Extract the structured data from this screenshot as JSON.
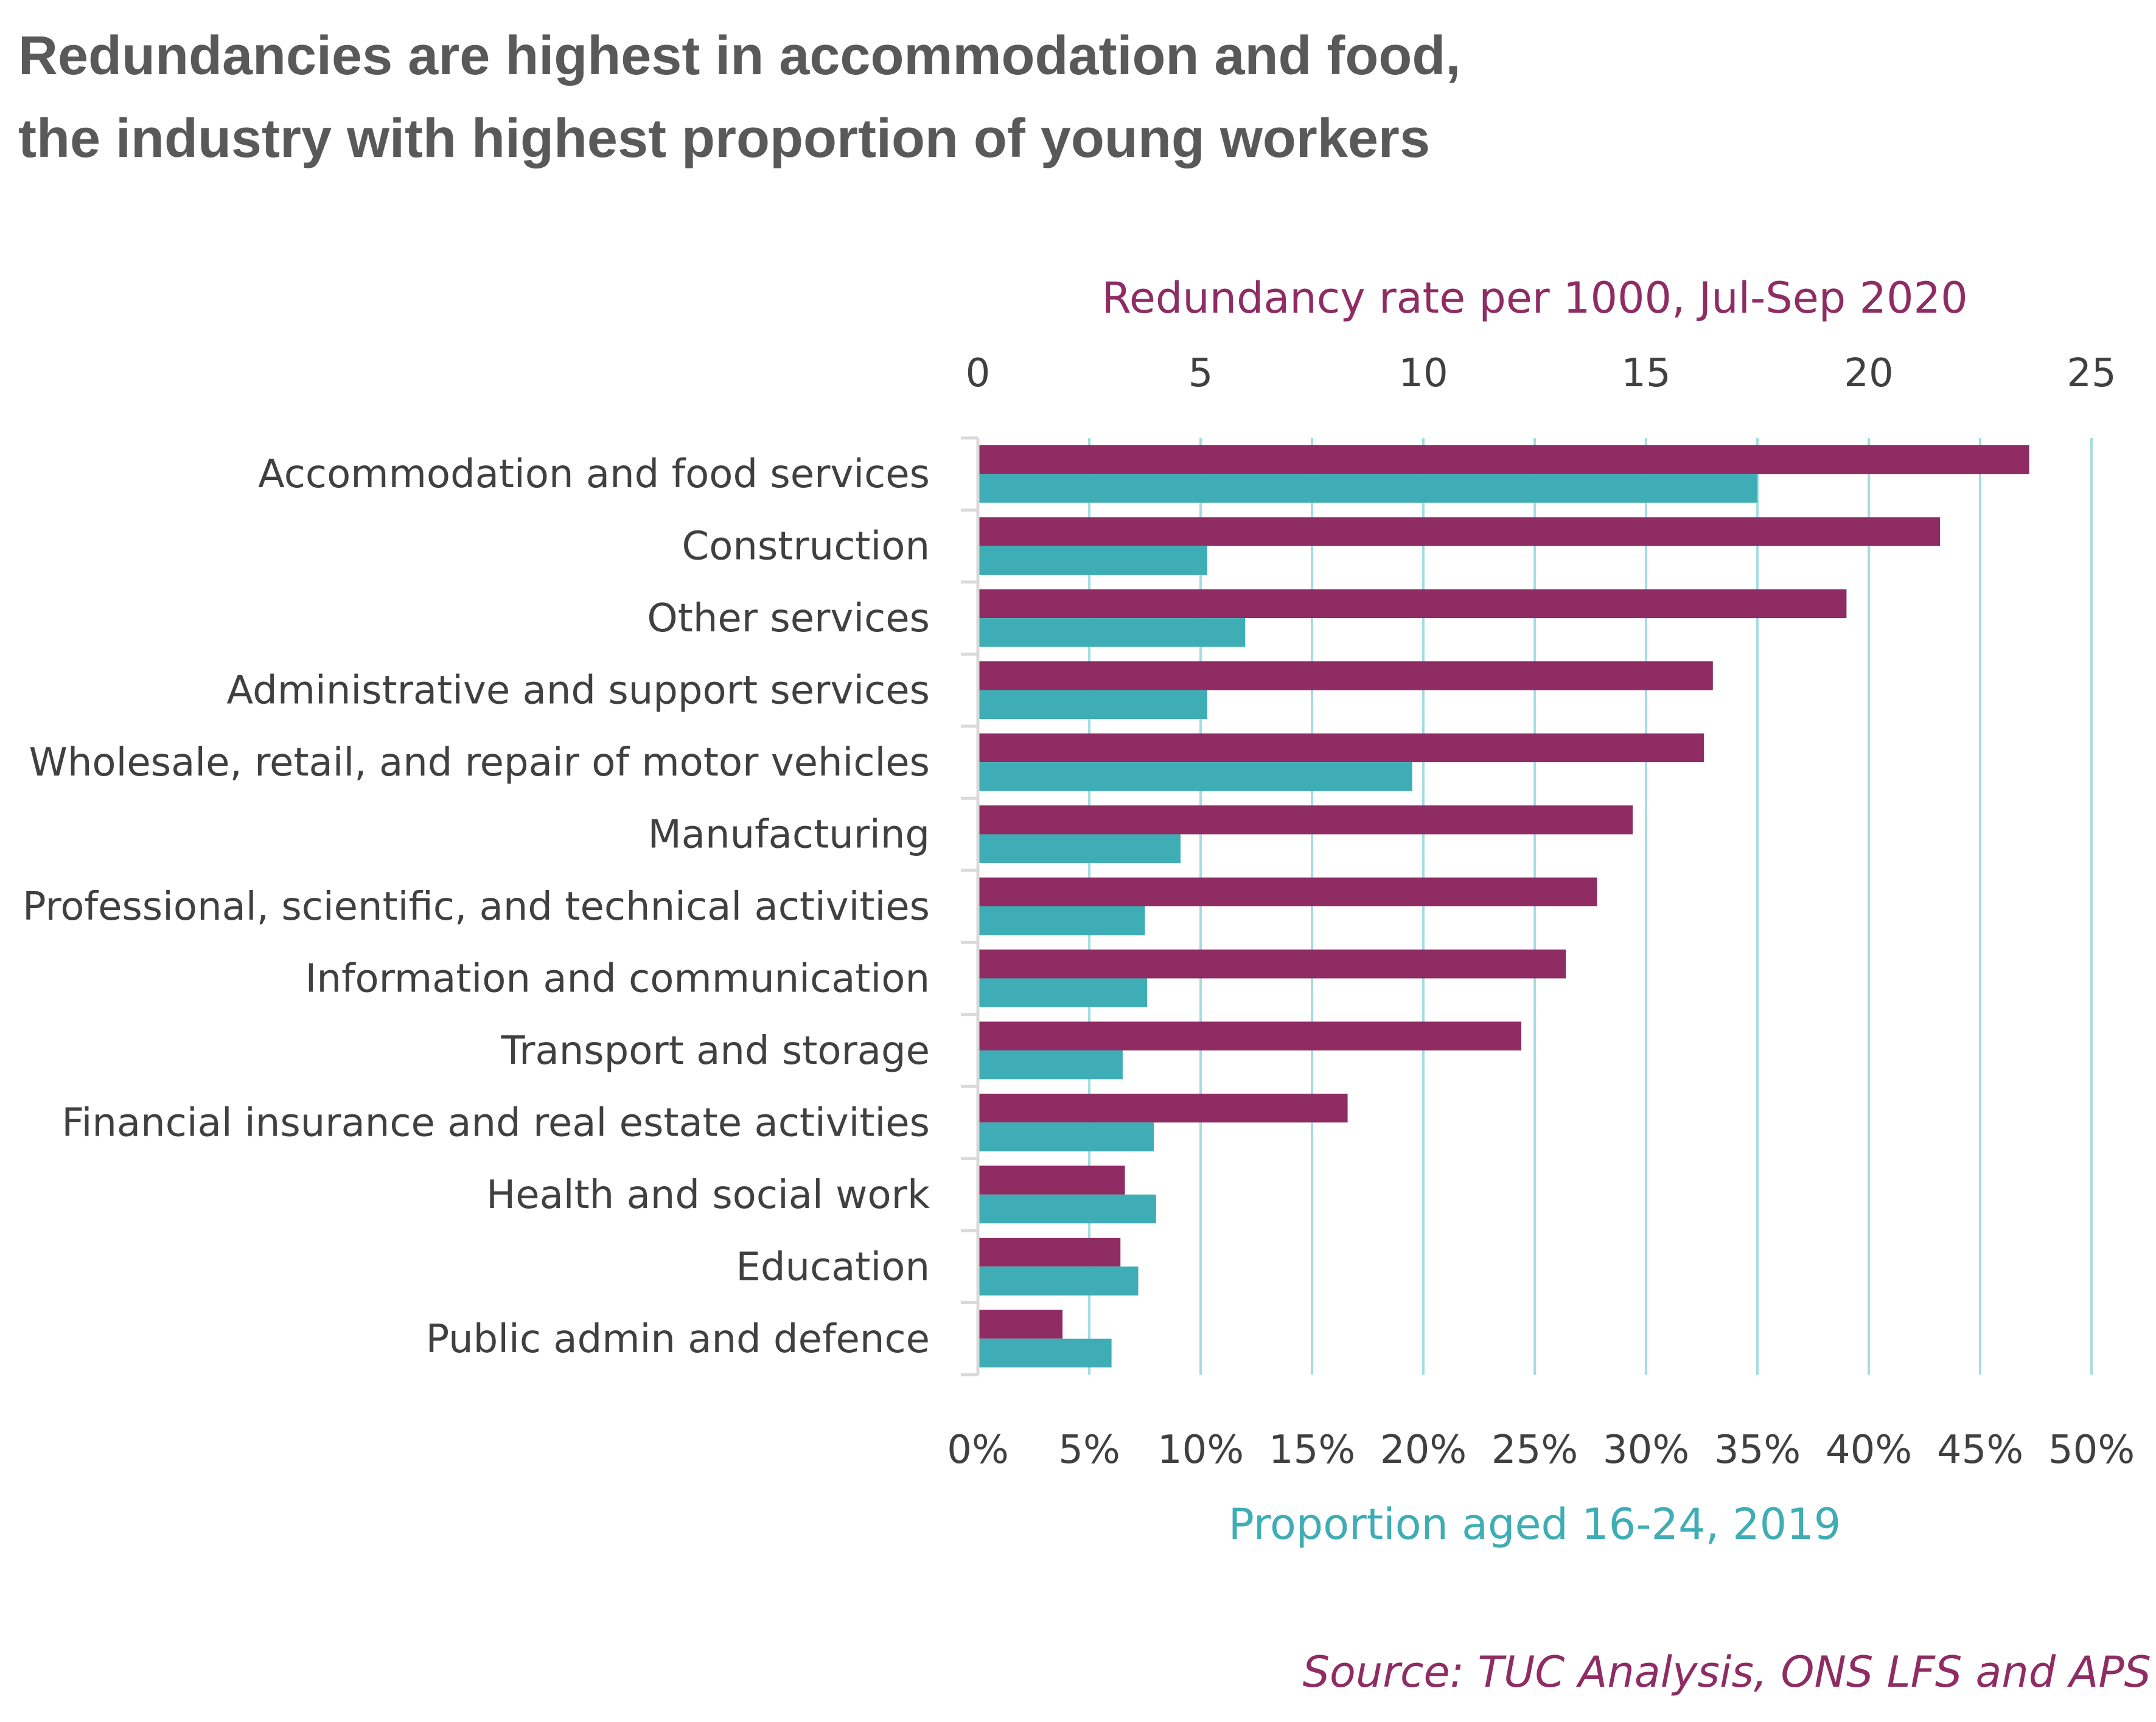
{
  "chart_data": {
    "type": "bar",
    "orientation": "horizontal",
    "title_lines": [
      "Redundancies are highest in accommodation and food,",
      "the industry with highest proportion of young workers"
    ],
    "categories": [
      "Accommodation and food services",
      "Construction",
      "Other services",
      "Administrative and support services",
      "Wholesale, retail, and repair of motor vehicles",
      "Manufacturing",
      "Professional, scientific, and technical activities",
      "Information and communication",
      "Transport and storage",
      "Financial insurance and real estate activities",
      "Health and social work",
      "Education",
      "Public admin and defence"
    ],
    "series": [
      {
        "name": "Redundancy rate per 1000, Jul-Sep 2020",
        "axis": "top",
        "values": [
          23.6,
          21.6,
          19.5,
          16.5,
          16.3,
          14.7,
          13.9,
          13.2,
          12.2,
          8.3,
          3.3,
          3.2,
          1.9
        ]
      },
      {
        "name": "Proportion aged 16-24, 2019",
        "axis": "bottom",
        "values": [
          35.0,
          10.3,
          12.0,
          10.3,
          19.5,
          9.1,
          7.5,
          7.6,
          6.5,
          7.9,
          8.0,
          7.2,
          6.0
        ]
      }
    ],
    "top_axis": {
      "label": "Redundancy rate per 1000, Jul-Sep 2020",
      "range": [
        0,
        25
      ],
      "ticks": [
        "0",
        "5",
        "10",
        "15",
        "20",
        "25"
      ]
    },
    "bottom_axis": {
      "label": "Proportion aged 16-24, 2019",
      "range": [
        0,
        50
      ],
      "ticks": [
        "0%",
        "5%",
        "10%",
        "15%",
        "20%",
        "25%",
        "30%",
        "35%",
        "40%",
        "45%",
        "50%"
      ]
    },
    "grid": true,
    "colors": {
      "redundancy": "#8e2c63",
      "young": "#3eadb5",
      "grid": "#a6dde0",
      "axis": "#d9d9d9"
    }
  },
  "source": "Source: TUC Analysis, ONS LFS and APS"
}
